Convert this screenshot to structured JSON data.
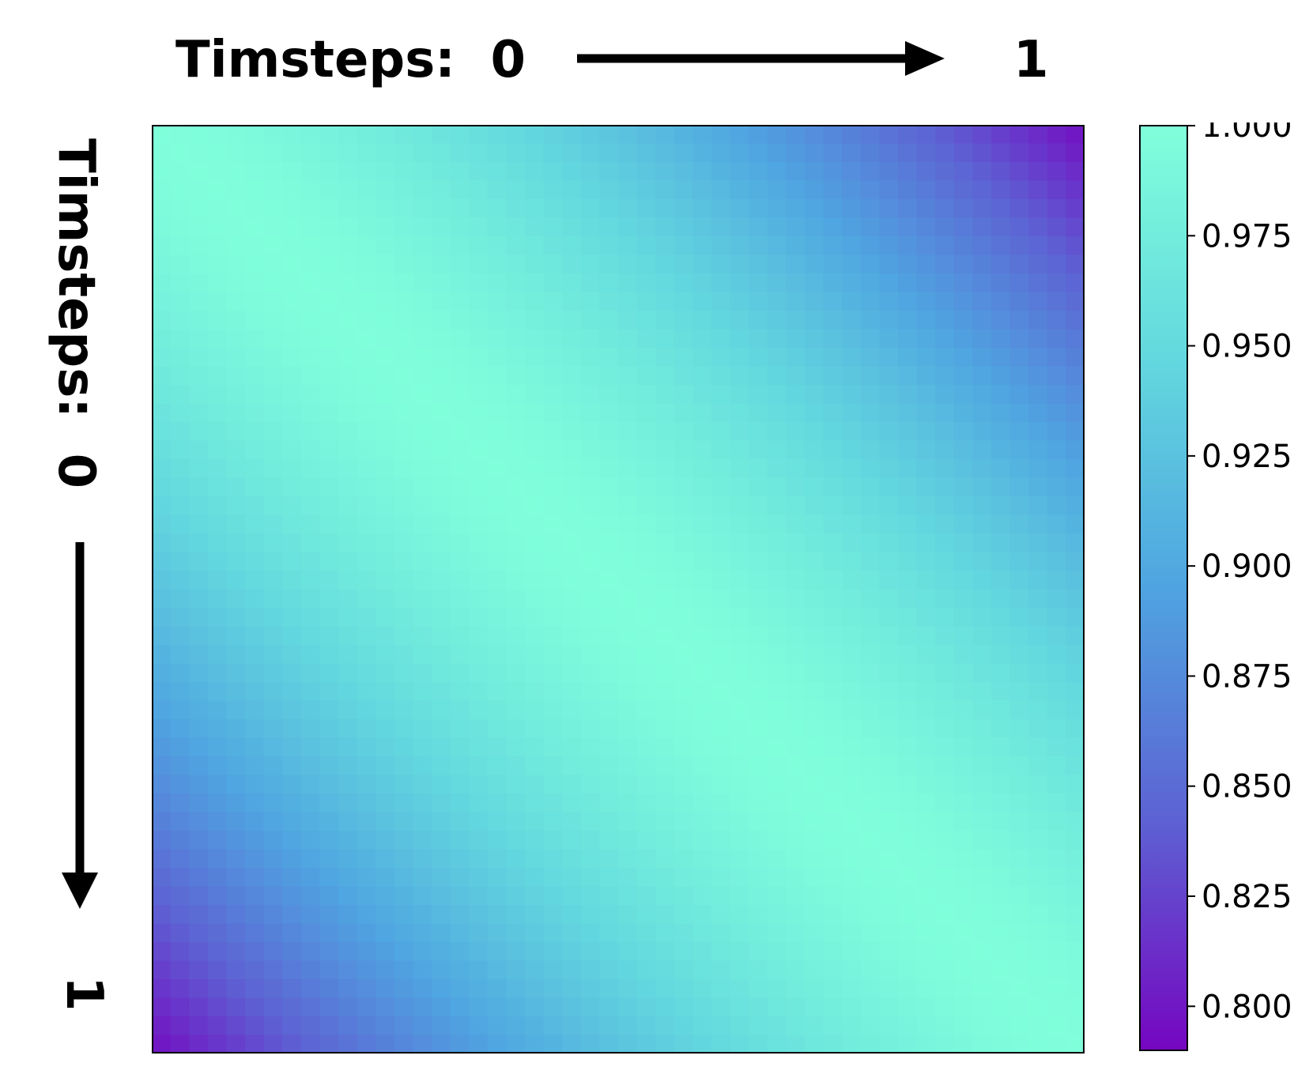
{
  "chart_data": {
    "type": "heatmap",
    "x_axis": {
      "label": "Timsteps:",
      "start": "0",
      "end": "1",
      "arrow": "right"
    },
    "y_axis": {
      "label": "Timsteps:",
      "start": "0",
      "end": "1",
      "arrow": "down"
    },
    "grid_size": [
      50,
      50
    ],
    "diagonal_value": 1.0,
    "corner_values": {
      "top_right": 0.8,
      "bottom_left": 0.8
    },
    "colorbar": {
      "vmin": 0.79,
      "vmax": 1.0,
      "ticks": [
        "1.000",
        "0.975",
        "0.950",
        "0.925",
        "0.900",
        "0.875",
        "0.850",
        "0.825",
        "0.800"
      ],
      "colors": [
        "#7506c0",
        "#5d62d3",
        "#4fa4e0",
        "#63d8de",
        "#80ffdb"
      ]
    }
  }
}
